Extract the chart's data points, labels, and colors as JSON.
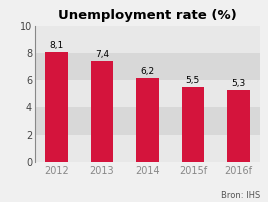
{
  "title": "Unemployment rate (%)",
  "categories": [
    "2012",
    "2013",
    "2014",
    "2015f",
    "2016f"
  ],
  "values": [
    8.1,
    7.4,
    6.2,
    5.5,
    5.3
  ],
  "bar_color": "#d4143c",
  "background_color": "#f0f0f0",
  "band_light": "#e8e8e8",
  "band_dark": "#d8d8d8",
  "ylim": [
    0,
    10
  ],
  "yticks": [
    0,
    2,
    4,
    6,
    8,
    10
  ],
  "title_fontsize": 9.5,
  "label_fontsize": 6.5,
  "tick_fontsize": 7,
  "xtick_color": "#888888",
  "source_text": "Bron: IHS",
  "source_fontsize": 6,
  "bar_width": 0.5
}
